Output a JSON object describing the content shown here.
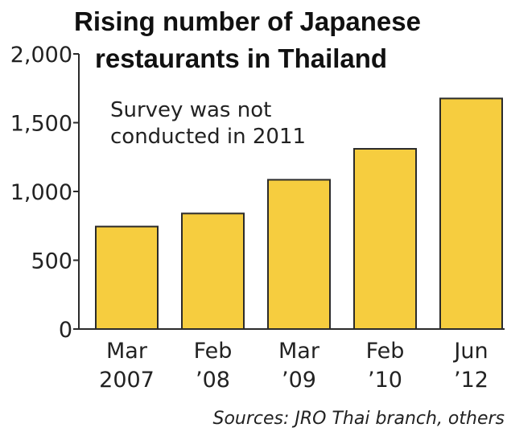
{
  "chart_data": {
    "type": "bar",
    "title_lines": [
      "Rising number of Japanese",
      "restaurants in Thailand"
    ],
    "note_lines": [
      "Survey was not",
      "conducted in 2011"
    ],
    "categories": [
      {
        "line1": "Mar",
        "line2": "2007"
      },
      {
        "line1": "Feb",
        "line2": "’08"
      },
      {
        "line1": "Mar",
        "line2": "’09"
      },
      {
        "line1": "Feb",
        "line2": "’10"
      },
      {
        "line1": "Jun",
        "line2": "’12"
      }
    ],
    "values": [
      745,
      840,
      1085,
      1310,
      1676
    ],
    "ylim": [
      0,
      2000
    ],
    "yticks": [
      0,
      500,
      1000,
      1500,
      2000
    ],
    "ytick_labels": [
      "0",
      "500",
      "1,000",
      "1,500",
      "2,000"
    ],
    "grid": false,
    "source": "Sources: JRO Thai branch, others",
    "colors": {
      "bar_fill": "#f6cd3f",
      "bar_stroke": "#2b2b2b",
      "axis": "#2b2b2b"
    }
  }
}
